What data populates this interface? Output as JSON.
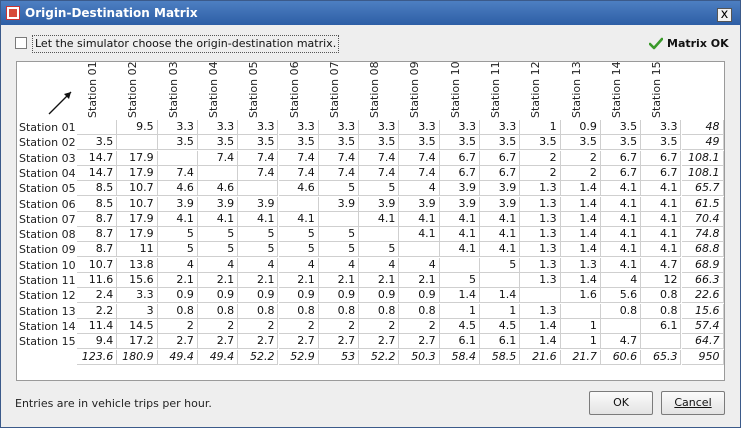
{
  "window": {
    "title": "Origin-Destination Matrix",
    "close_glyph": "x"
  },
  "options": {
    "auto_matrix_label": "Let the simulator choose the origin-destination matrix.",
    "auto_matrix_checked": false
  },
  "status": {
    "label": "Matrix OK",
    "icon": "check-icon",
    "icon_color": "#3a9a2a"
  },
  "matrix": {
    "columns": [
      "Station 01",
      "Station 02",
      "Station 03",
      "Station 04",
      "Station 05",
      "Station 06",
      "Station 07",
      "Station 08",
      "Station 09",
      "Station 10",
      "Station 11",
      "Station 12",
      "Station 13",
      "Station 14",
      "Station 15"
    ],
    "rows": [
      {
        "label": "Station 01",
        "values": [
          "",
          "9.5",
          "3.3",
          "3.3",
          "3.3",
          "3.3",
          "3.3",
          "3.3",
          "3.3",
          "3.3",
          "3.3",
          "1",
          "0.9",
          "3.5",
          "3.3"
        ],
        "total": "48"
      },
      {
        "label": "Station 02",
        "values": [
          "3.5",
          "",
          "3.5",
          "3.5",
          "3.5",
          "3.5",
          "3.5",
          "3.5",
          "3.5",
          "3.5",
          "3.5",
          "3.5",
          "3.5",
          "3.5",
          "3.5"
        ],
        "total": "49"
      },
      {
        "label": "Station 03",
        "values": [
          "14.7",
          "17.9",
          "",
          "7.4",
          "7.4",
          "7.4",
          "7.4",
          "7.4",
          "7.4",
          "6.7",
          "6.7",
          "2",
          "2",
          "6.7",
          "6.7"
        ],
        "total": "108.1"
      },
      {
        "label": "Station 04",
        "values": [
          "14.7",
          "17.9",
          "7.4",
          "",
          "7.4",
          "7.4",
          "7.4",
          "7.4",
          "7.4",
          "6.7",
          "6.7",
          "2",
          "2",
          "6.7",
          "6.7"
        ],
        "total": "108.1"
      },
      {
        "label": "Station 05",
        "values": [
          "8.5",
          "10.7",
          "4.6",
          "4.6",
          "",
          "4.6",
          "5",
          "5",
          "4",
          "3.9",
          "3.9",
          "1.3",
          "1.4",
          "4.1",
          "4.1"
        ],
        "total": "65.7"
      },
      {
        "label": "Station 06",
        "values": [
          "8.5",
          "10.7",
          "3.9",
          "3.9",
          "3.9",
          "",
          "3.9",
          "3.9",
          "3.9",
          "3.9",
          "3.9",
          "1.3",
          "1.4",
          "4.1",
          "4.1"
        ],
        "total": "61.5"
      },
      {
        "label": "Station 07",
        "values": [
          "8.7",
          "17.9",
          "4.1",
          "4.1",
          "4.1",
          "4.1",
          "",
          "4.1",
          "4.1",
          "4.1",
          "4.1",
          "1.3",
          "1.4",
          "4.1",
          "4.1"
        ],
        "total": "70.4"
      },
      {
        "label": "Station 08",
        "values": [
          "8.7",
          "17.9",
          "5",
          "5",
          "5",
          "5",
          "5",
          "",
          "4.1",
          "4.1",
          "4.1",
          "1.3",
          "1.4",
          "4.1",
          "4.1"
        ],
        "total": "74.8"
      },
      {
        "label": "Station 09",
        "values": [
          "8.7",
          "11",
          "5",
          "5",
          "5",
          "5",
          "5",
          "5",
          "",
          "4.1",
          "4.1",
          "1.3",
          "1.4",
          "4.1",
          "4.1"
        ],
        "total": "68.8"
      },
      {
        "label": "Station 10",
        "values": [
          "10.7",
          "13.8",
          "4",
          "4",
          "4",
          "4",
          "4",
          "4",
          "4",
          "",
          "5",
          "1.3",
          "1.3",
          "4.1",
          "4.7"
        ],
        "total": "68.9"
      },
      {
        "label": "Station 11",
        "values": [
          "11.6",
          "15.6",
          "2.1",
          "2.1",
          "2.1",
          "2.1",
          "2.1",
          "2.1",
          "2.1",
          "5",
          "",
          "1.3",
          "1.4",
          "4",
          "12"
        ],
        "total": "66.3"
      },
      {
        "label": "Station 12",
        "values": [
          "2.4",
          "3.3",
          "0.9",
          "0.9",
          "0.9",
          "0.9",
          "0.9",
          "0.9",
          "0.9",
          "1.4",
          "1.4",
          "",
          "1.6",
          "5.6",
          "0.8"
        ],
        "total": "22.6"
      },
      {
        "label": "Station 13",
        "values": [
          "2.2",
          "3",
          "0.8",
          "0.8",
          "0.8",
          "0.8",
          "0.8",
          "0.8",
          "0.8",
          "1",
          "1",
          "1.3",
          "",
          "0.8",
          "0.8"
        ],
        "total": "15.6"
      },
      {
        "label": "Station 14",
        "values": [
          "11.4",
          "14.5",
          "2",
          "2",
          "2",
          "2",
          "2",
          "2",
          "2",
          "4.5",
          "4.5",
          "1.4",
          "1",
          "",
          "6.1"
        ],
        "total": "57.4"
      },
      {
        "label": "Station 15",
        "values": [
          "9.4",
          "17.2",
          "2.7",
          "2.7",
          "2.7",
          "2.7",
          "2.7",
          "2.7",
          "2.7",
          "6.1",
          "6.1",
          "1.4",
          "1",
          "4.7",
          ""
        ],
        "total": "64.7"
      }
    ],
    "column_totals": [
      "123.6",
      "180.9",
      "49.4",
      "49.4",
      "52.2",
      "52.9",
      "53",
      "52.2",
      "50.3",
      "58.4",
      "58.5",
      "21.6",
      "21.7",
      "60.6",
      "65.3"
    ],
    "grand_total": "950"
  },
  "footer": {
    "note": "Entries are in vehicle trips per hour.",
    "ok_label": "OK",
    "cancel_label": "Cancel"
  }
}
